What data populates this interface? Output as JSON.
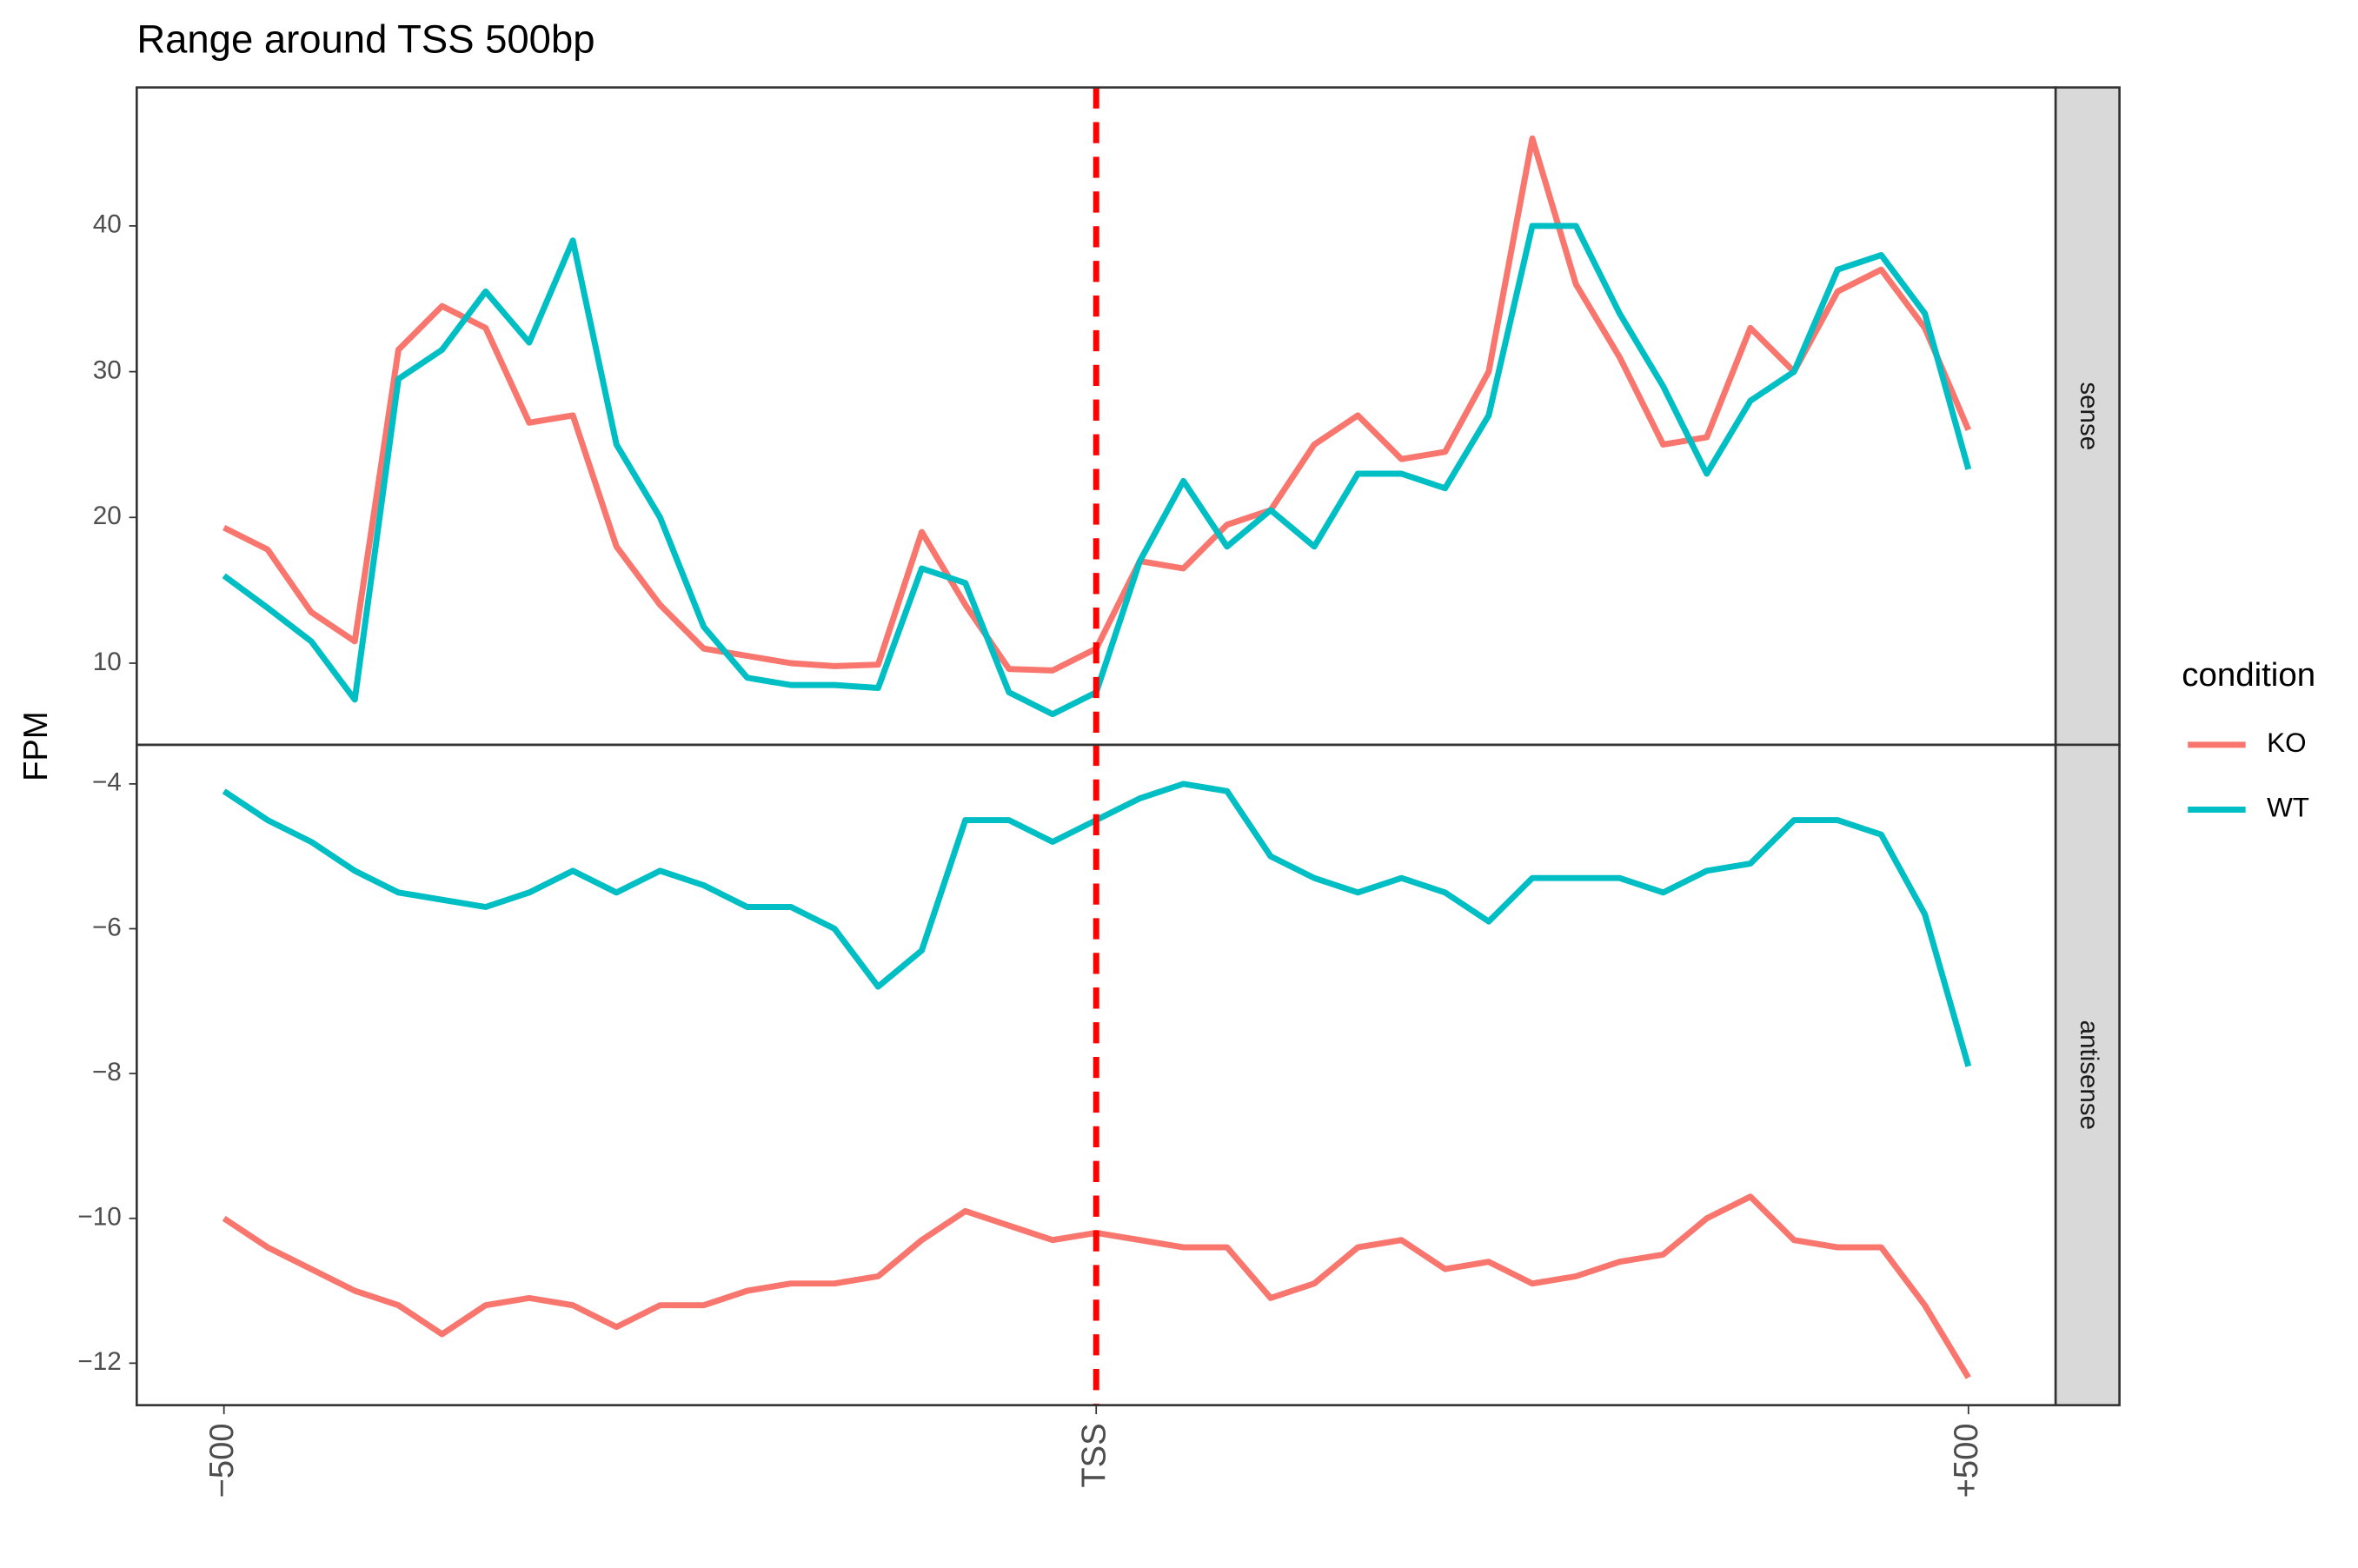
{
  "chart_data": {
    "type": "line",
    "title": "Range around TSS 500bp",
    "y_label": "FPM",
    "legend_title": "condition",
    "x": [
      -500,
      -475,
      -450,
      -425,
      -400,
      -375,
      -350,
      -325,
      -300,
      -275,
      -250,
      -225,
      -200,
      -175,
      -150,
      -125,
      -100,
      -75,
      -50,
      -25,
      0,
      25,
      50,
      75,
      100,
      125,
      150,
      175,
      200,
      225,
      250,
      275,
      300,
      325,
      350,
      375,
      400,
      425,
      450,
      475,
      500
    ],
    "xlim": [
      -550,
      550
    ],
    "xticks": [
      {
        "value": -500,
        "label": "−500"
      },
      {
        "value": 0,
        "label": "TSS"
      },
      {
        "value": 500,
        "label": "+500"
      }
    ],
    "vline": 0,
    "vline_color": "#ff0000",
    "series": [
      {
        "name": "KO",
        "color": "#f8766d"
      },
      {
        "name": "WT",
        "color": "#00bfc4"
      }
    ],
    "panels": [
      {
        "label": "sense",
        "ylim": [
          4.4,
          49.5
        ],
        "yticks": [
          10,
          20,
          30,
          40
        ],
        "values": [
          [
            19.3,
            17.8,
            13.5,
            11.5,
            31.5,
            34.5,
            33,
            26.5,
            27,
            18,
            14,
            11,
            10.5,
            10,
            9.8,
            9.9,
            19,
            14,
            9.6,
            9.5,
            11,
            17,
            16.5,
            19.5,
            20.5,
            25,
            27,
            24,
            24.5,
            30,
            46,
            36,
            31,
            25,
            25.5,
            33,
            30,
            35.5,
            37,
            33,
            26
          ],
          [
            16,
            13.8,
            11.5,
            7.5,
            29.5,
            31.5,
            35.5,
            32,
            39,
            25,
            20,
            12.5,
            9,
            8.5,
            8.5,
            8.3,
            16.5,
            15.5,
            8,
            6.5,
            8,
            17,
            22.5,
            18,
            20.5,
            18,
            23,
            23,
            22,
            27,
            40,
            40,
            34,
            29,
            23,
            28,
            30,
            37,
            38,
            34,
            23.3
          ]
        ]
      },
      {
        "label": "antisense",
        "ylim": [
          -12.58,
          -3.46
        ],
        "yticks": [
          {
            "value": -12,
            "label": "−12"
          },
          {
            "value": -10,
            "label": "−10"
          },
          {
            "value": -8,
            "label": "−8"
          },
          {
            "value": -6,
            "label": "−6"
          },
          {
            "value": -4,
            "label": "−4"
          }
        ],
        "values": [
          [
            -10,
            -10.4,
            -10.7,
            -11,
            -11.2,
            -11.6,
            -11.2,
            -11.1,
            -11.2,
            -11.5,
            -11.2,
            -11.2,
            -11,
            -10.9,
            -10.9,
            -10.8,
            -10.3,
            -9.9,
            -10.1,
            -10.3,
            -10.2,
            -10.3,
            -10.4,
            -10.4,
            -11.1,
            -10.9,
            -10.4,
            -10.3,
            -10.7,
            -10.6,
            -10.9,
            -10.8,
            -10.6,
            -10.5,
            -10,
            -9.7,
            -10.3,
            -10.4,
            -10.4,
            -11.2,
            -12.2
          ],
          [
            -4.1,
            -4.5,
            -4.8,
            -5.2,
            -5.5,
            -5.6,
            -5.7,
            -5.5,
            -5.2,
            -5.5,
            -5.2,
            -5.4,
            -5.7,
            -5.7,
            -6,
            -6.8,
            -6.3,
            -4.5,
            -4.5,
            -4.8,
            -4.5,
            -4.2,
            -4,
            -4.1,
            -5,
            -5.3,
            -5.5,
            -5.3,
            -5.5,
            -5.9,
            -5.3,
            -5.3,
            -5.3,
            -5.5,
            -5.2,
            -5.1,
            -4.5,
            -4.5,
            -4.7,
            -5.8,
            -7.9
          ]
        ]
      }
    ]
  }
}
